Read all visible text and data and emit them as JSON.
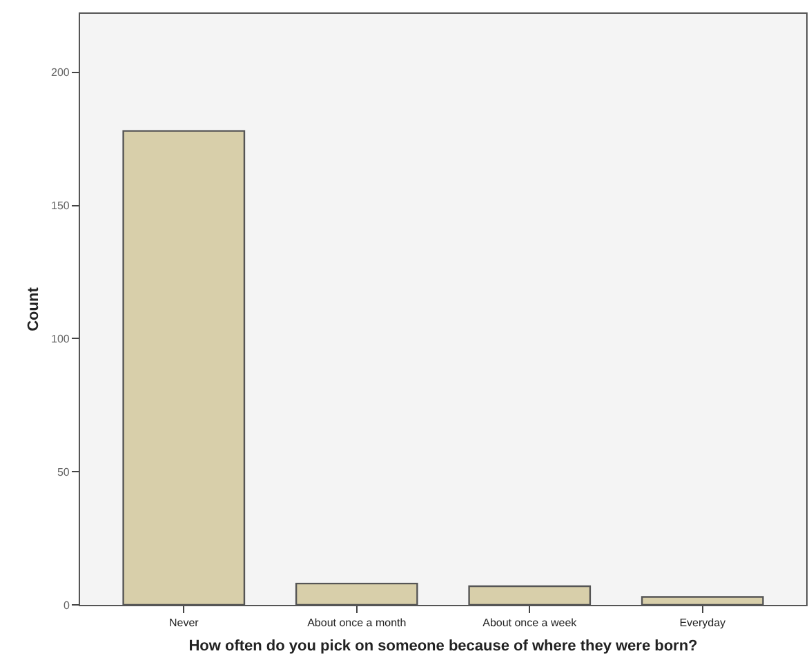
{
  "chart_data": {
    "type": "bar",
    "xlabel": "How often do you pick on someone because of where they were born?",
    "ylabel": "Count",
    "categories": [
      "Never",
      "About once a month",
      "About once a week",
      "Everyday"
    ],
    "values": [
      178,
      8,
      7,
      3
    ],
    "color": "#d8cfaa",
    "ylim": [
      0,
      222
    ],
    "yticks": [
      0,
      50,
      100,
      150,
      200
    ],
    "grid": false,
    "legend": false
  }
}
